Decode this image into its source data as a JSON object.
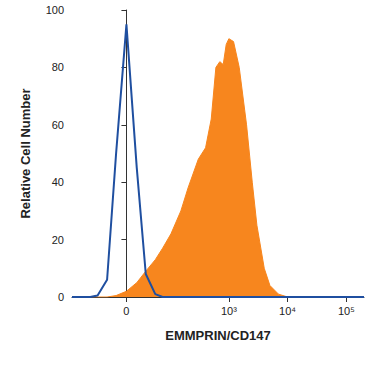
{
  "chart_data": {
    "type": "line",
    "x_label": "EMMPRIN/CD147",
    "y_label": "Relative Cell Number",
    "x": [
      -150,
      -100,
      -70,
      -50,
      -30,
      -15,
      0,
      15,
      30,
      50,
      70,
      100,
      150,
      200,
      300,
      400,
      500,
      600,
      700,
      800,
      900,
      1000,
      1200,
      1500,
      2000,
      2500,
      3000,
      4000,
      5000,
      7000,
      10000,
      20000,
      50000,
      100000,
      200000
    ],
    "series": [
      {
        "type": "area",
        "color": "#f7861e",
        "values": [
          0,
          0,
          0,
          0,
          0,
          0.5,
          2,
          5,
          9,
          13,
          17,
          22,
          30,
          38,
          48,
          52,
          62,
          80,
          82,
          81,
          88,
          90,
          89,
          80,
          60,
          40,
          25,
          10,
          4,
          1,
          0,
          0,
          0,
          0,
          0
        ]
      },
      {
        "type": "line",
        "color": "#1f4fa0",
        "values": [
          0,
          0,
          0,
          0.5,
          6,
          50,
          95,
          45,
          8,
          1,
          0,
          0,
          0,
          0,
          0,
          0,
          0,
          0,
          0,
          0,
          0,
          0,
          0,
          0,
          0,
          0,
          0,
          0,
          0,
          0,
          0,
          0,
          0,
          0,
          0
        ]
      }
    ],
    "xlim": [
      -150,
      200000
    ],
    "xticks": [
      0,
      {
        "value": 1000,
        "label": "10³"
      },
      {
        "value": 10000,
        "label": "10⁴"
      },
      {
        "value": 100000,
        "label": "10⁵"
      }
    ],
    "ylim": [
      0,
      100
    ],
    "yticks": [
      0,
      20,
      40,
      60,
      80,
      100
    ],
    "grid": false
  }
}
